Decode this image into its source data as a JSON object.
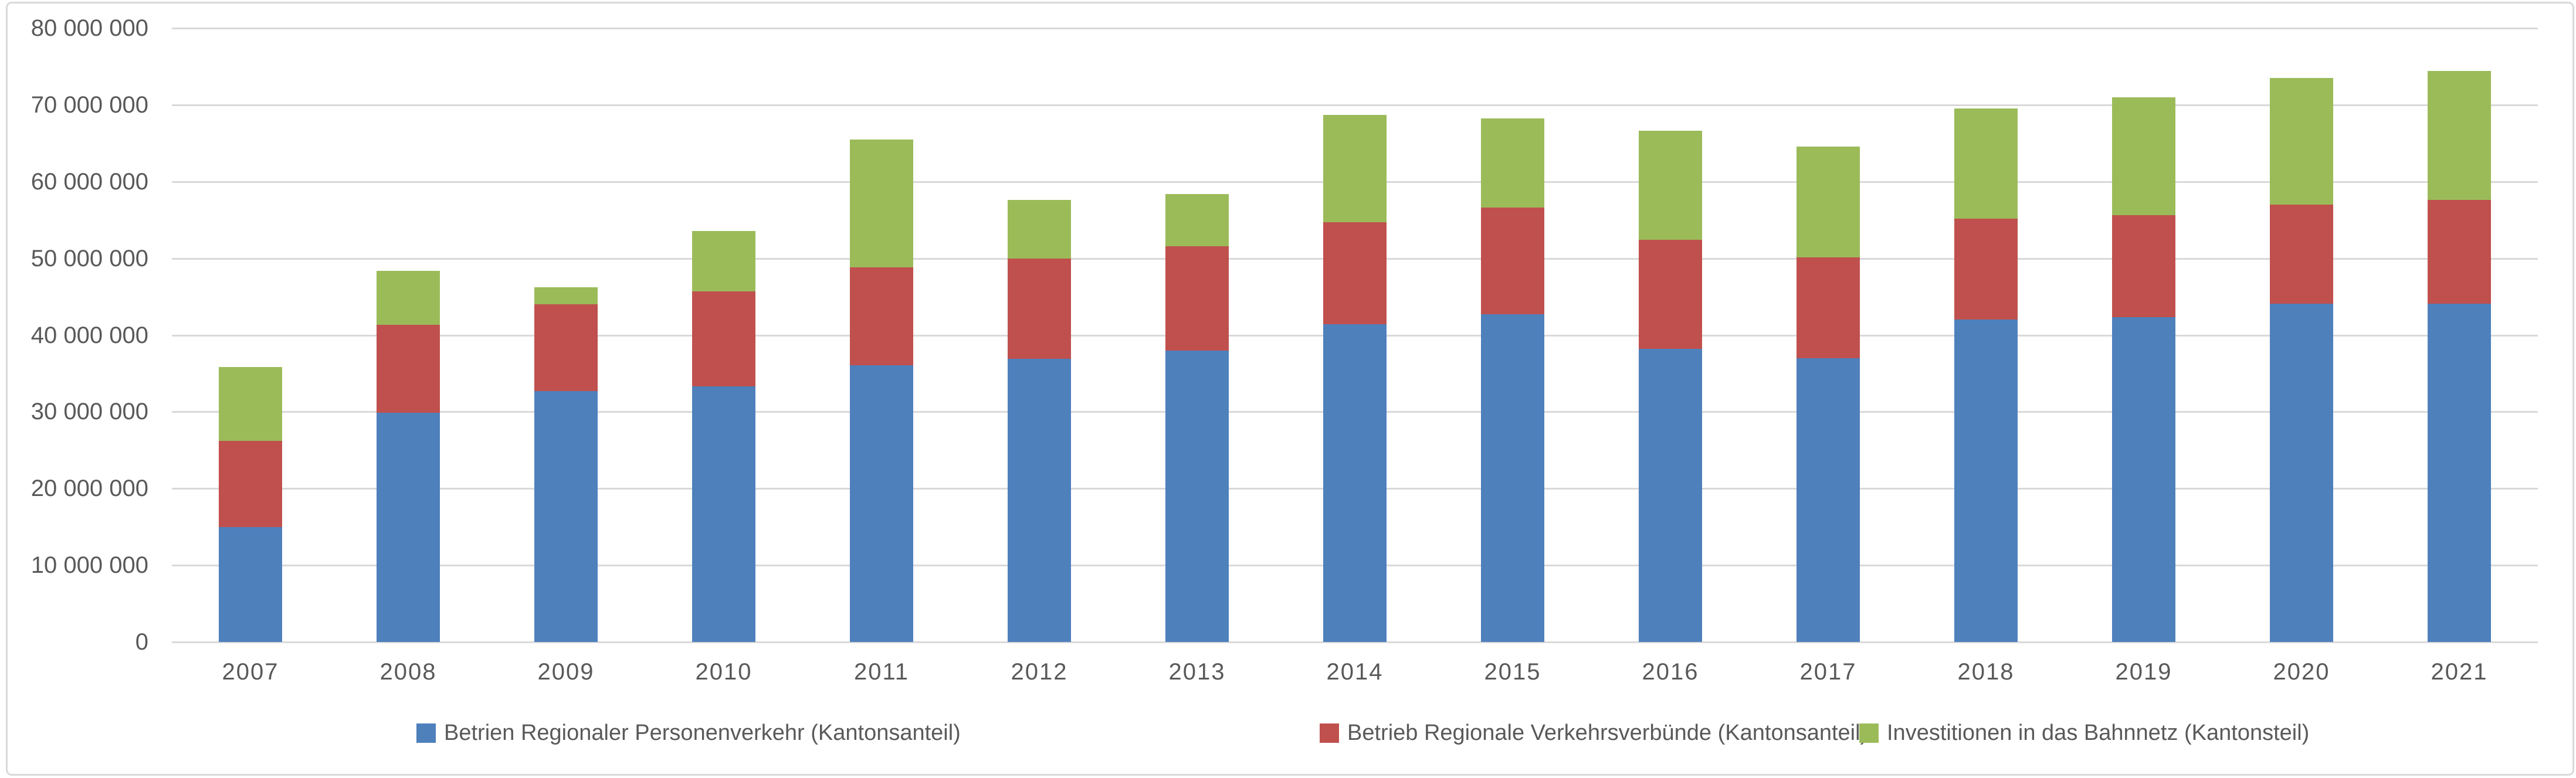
{
  "chart_data": {
    "type": "bar",
    "stacked": true,
    "title": "",
    "xlabel": "",
    "ylabel": "",
    "ylim": [
      0,
      80000000
    ],
    "y_step": 10000000,
    "grid": true,
    "legend_position": "bottom",
    "y_tick_labels_top_to_bottom": [
      "80 000 000",
      "70 000 000",
      "60 000 000",
      "50 000 000",
      "40 000 000",
      "30 000 000",
      "20 000 000",
      "10 000 000",
      "0"
    ],
    "categories": [
      "2007",
      "2008",
      "2009",
      "2010",
      "2011",
      "2012",
      "2013",
      "2014",
      "2015",
      "2016",
      "2017",
      "2018",
      "2019",
      "2020",
      "2021"
    ],
    "series": [
      {
        "key": "betrieb-rpv",
        "name": "Betrien Regionaler Personenverkehr (Kantonsanteil)",
        "color": "#4E80BC",
        "values": [
          15000000,
          29900000,
          32700000,
          33300000,
          36100000,
          36900000,
          38000000,
          41400000,
          42700000,
          38200000,
          37000000,
          42000000,
          42300000,
          44100000,
          44100000
        ]
      },
      {
        "key": "betrieb-verkehrsverbuende",
        "name": "Betrieb Regionale Verkehrsverbünde (Kantonsanteil)",
        "color": "#C0504D",
        "values": [
          11200000,
          11400000,
          11300000,
          12400000,
          12700000,
          13100000,
          13600000,
          13300000,
          13900000,
          14200000,
          13100000,
          13200000,
          13300000,
          12900000,
          13500000
        ]
      },
      {
        "key": "investitionen-bahnnetz",
        "name": "Investitionen in das Bahnnetz (Kantonsteil)",
        "color": "#9BBB59",
        "values": [
          9600000,
          7100000,
          2200000,
          7900000,
          16700000,
          7600000,
          6800000,
          14000000,
          11600000,
          14200000,
          14500000,
          14300000,
          15400000,
          16500000,
          16800000
        ]
      }
    ],
    "gridline_color": "#D9D9D9",
    "text_color": "#595959"
  }
}
